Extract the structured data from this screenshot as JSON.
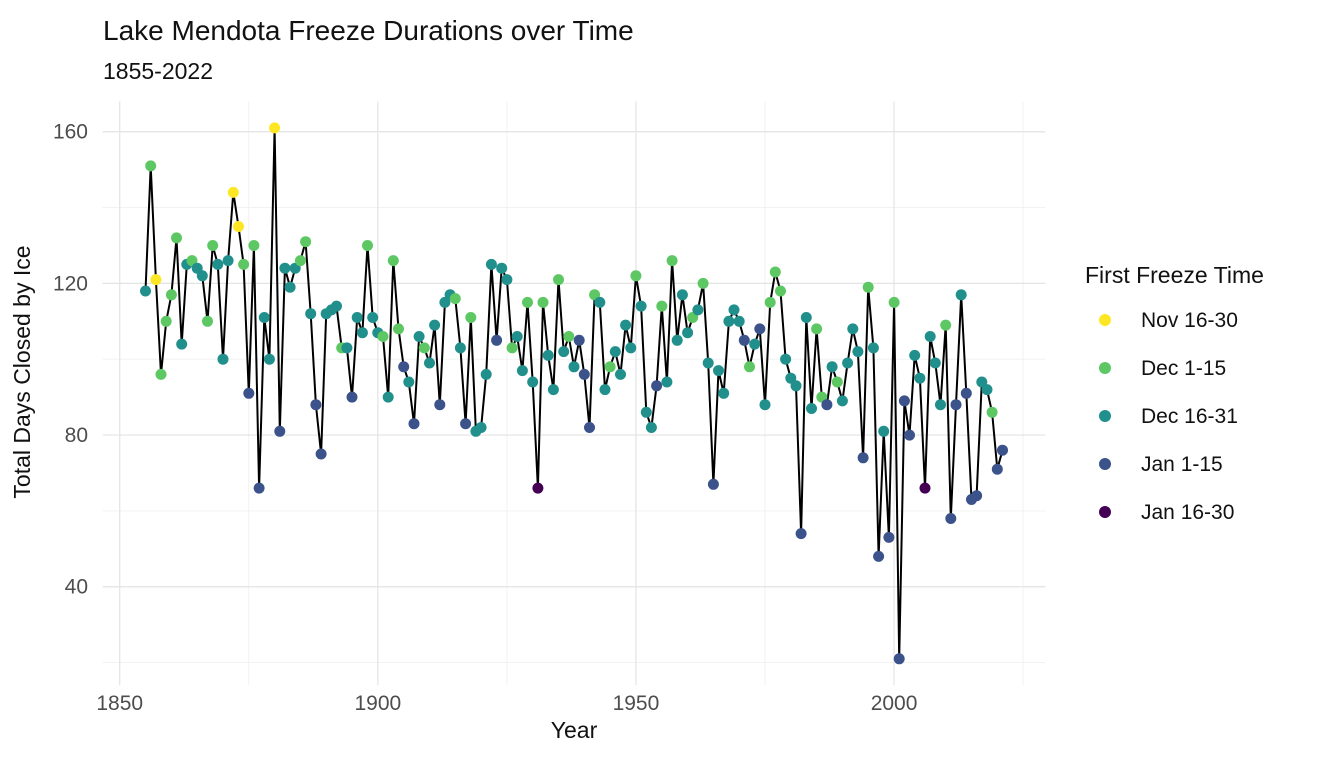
{
  "header": {
    "title": "Lake Mendota Freeze Durations over Time",
    "subtitle": "1855-2022"
  },
  "legend": {
    "title": "First Freeze Time",
    "items": [
      {
        "label": "Nov 16-30",
        "color": "#FDE725"
      },
      {
        "label": "Dec 1-15",
        "color": "#5DC863"
      },
      {
        "label": "Dec 16-31",
        "color": "#21908C"
      },
      {
        "label": "Jan 1-15",
        "color": "#3B528B"
      },
      {
        "label": "Jan 16-30",
        "color": "#440154"
      }
    ]
  },
  "chart_data": {
    "type": "line",
    "title": "Lake Mendota Freeze Durations over Time",
    "subtitle": "1855-2022",
    "xlabel": "Year",
    "ylabel": "Total Days Closed by Ice",
    "xlim": [
      1846.7,
      2029.3
    ],
    "ylim": [
      14,
      168
    ],
    "x_major_ticks": [
      1850,
      1900,
      1950,
      2000
    ],
    "x_minor_gridlines": [
      1875,
      1925,
      1975,
      2025
    ],
    "y_major_ticks": [
      40,
      80,
      120,
      160
    ],
    "y_minor_gridlines": [
      20,
      60,
      100,
      140
    ],
    "grid": "on",
    "legend_position": "right",
    "line_color": "#000000",
    "point_legend_key": "freeze_bucket_index_into_legend_items",
    "points": [
      [
        1855,
        118,
        2
      ],
      [
        1856,
        151,
        1
      ],
      [
        1857,
        121,
        0
      ],
      [
        1858,
        96,
        1
      ],
      [
        1859,
        110,
        1
      ],
      [
        1860,
        117,
        1
      ],
      [
        1861,
        132,
        1
      ],
      [
        1862,
        104,
        2
      ],
      [
        1863,
        125,
        2
      ],
      [
        1864,
        126,
        1
      ],
      [
        1865,
        124,
        2
      ],
      [
        1866,
        122,
        2
      ],
      [
        1867,
        110,
        1
      ],
      [
        1868,
        130,
        1
      ],
      [
        1869,
        125,
        2
      ],
      [
        1870,
        100,
        2
      ],
      [
        1871,
        126,
        2
      ],
      [
        1872,
        144,
        0
      ],
      [
        1873,
        135,
        0
      ],
      [
        1874,
        125,
        1
      ],
      [
        1875,
        91,
        3
      ],
      [
        1876,
        130,
        1
      ],
      [
        1877,
        66,
        3
      ],
      [
        1878,
        111,
        2
      ],
      [
        1879,
        100,
        2
      ],
      [
        1880,
        161,
        0
      ],
      [
        1881,
        81,
        3
      ],
      [
        1882,
        124,
        2
      ],
      [
        1883,
        119,
        2
      ],
      [
        1884,
        124,
        2
      ],
      [
        1885,
        126,
        1
      ],
      [
        1886,
        131,
        1
      ],
      [
        1887,
        112,
        2
      ],
      [
        1888,
        88,
        3
      ],
      [
        1889,
        75,
        3
      ],
      [
        1890,
        112,
        2
      ],
      [
        1891,
        113,
        2
      ],
      [
        1892,
        114,
        2
      ],
      [
        1893,
        103,
        1
      ],
      [
        1894,
        103,
        2
      ],
      [
        1895,
        90,
        3
      ],
      [
        1896,
        111,
        2
      ],
      [
        1897,
        107,
        2
      ],
      [
        1898,
        130,
        1
      ],
      [
        1899,
        111,
        2
      ],
      [
        1900,
        107,
        2
      ],
      [
        1901,
        106,
        1
      ],
      [
        1902,
        90,
        2
      ],
      [
        1903,
        126,
        1
      ],
      [
        1904,
        108,
        1
      ],
      [
        1905,
        98,
        3
      ],
      [
        1906,
        94,
        2
      ],
      [
        1907,
        83,
        3
      ],
      [
        1908,
        106,
        2
      ],
      [
        1909,
        103,
        1
      ],
      [
        1910,
        99,
        2
      ],
      [
        1911,
        109,
        2
      ],
      [
        1912,
        88,
        3
      ],
      [
        1913,
        115,
        2
      ],
      [
        1914,
        117,
        2
      ],
      [
        1915,
        116,
        1
      ],
      [
        1916,
        103,
        2
      ],
      [
        1917,
        83,
        3
      ],
      [
        1918,
        111,
        1
      ],
      [
        1919,
        81,
        2
      ],
      [
        1920,
        82,
        2
      ],
      [
        1921,
        96,
        2
      ],
      [
        1922,
        125,
        2
      ],
      [
        1923,
        105,
        3
      ],
      [
        1924,
        124,
        2
      ],
      [
        1925,
        121,
        2
      ],
      [
        1926,
        103,
        1
      ],
      [
        1927,
        106,
        2
      ],
      [
        1928,
        97,
        2
      ],
      [
        1929,
        115,
        1
      ],
      [
        1930,
        94,
        2
      ],
      [
        1931,
        66,
        4
      ],
      [
        1932,
        115,
        1
      ],
      [
        1933,
        101,
        2
      ],
      [
        1934,
        92,
        2
      ],
      [
        1935,
        121,
        1
      ],
      [
        1936,
        102,
        2
      ],
      [
        1937,
        106,
        1
      ],
      [
        1938,
        98,
        2
      ],
      [
        1939,
        105,
        3
      ],
      [
        1940,
        96,
        3
      ],
      [
        1941,
        82,
        3
      ],
      [
        1942,
        117,
        1
      ],
      [
        1943,
        115,
        2
      ],
      [
        1944,
        92,
        2
      ],
      [
        1945,
        98,
        1
      ],
      [
        1946,
        102,
        2
      ],
      [
        1947,
        96,
        2
      ],
      [
        1948,
        109,
        2
      ],
      [
        1949,
        103,
        2
      ],
      [
        1950,
        122,
        1
      ],
      [
        1951,
        114,
        2
      ],
      [
        1952,
        86,
        2
      ],
      [
        1953,
        82,
        2
      ],
      [
        1954,
        93,
        3
      ],
      [
        1955,
        114,
        1
      ],
      [
        1956,
        94,
        2
      ],
      [
        1957,
        126,
        1
      ],
      [
        1958,
        105,
        2
      ],
      [
        1959,
        117,
        2
      ],
      [
        1960,
        107,
        2
      ],
      [
        1961,
        111,
        1
      ],
      [
        1962,
        113,
        2
      ],
      [
        1963,
        120,
        1
      ],
      [
        1964,
        99,
        2
      ],
      [
        1965,
        67,
        3
      ],
      [
        1966,
        97,
        2
      ],
      [
        1967,
        91,
        2
      ],
      [
        1968,
        110,
        2
      ],
      [
        1969,
        113,
        2
      ],
      [
        1970,
        110,
        2
      ],
      [
        1971,
        105,
        3
      ],
      [
        1972,
        98,
        1
      ],
      [
        1973,
        104,
        2
      ],
      [
        1974,
        108,
        3
      ],
      [
        1975,
        88,
        2
      ],
      [
        1976,
        115,
        1
      ],
      [
        1977,
        123,
        1
      ],
      [
        1978,
        118,
        1
      ],
      [
        1979,
        100,
        2
      ],
      [
        1980,
        95,
        2
      ],
      [
        1981,
        93,
        2
      ],
      [
        1982,
        54,
        3
      ],
      [
        1983,
        111,
        2
      ],
      [
        1984,
        87,
        2
      ],
      [
        1985,
        108,
        1
      ],
      [
        1986,
        90,
        1
      ],
      [
        1987,
        88,
        3
      ],
      [
        1988,
        98,
        2
      ],
      [
        1989,
        94,
        1
      ],
      [
        1990,
        89,
        2
      ],
      [
        1991,
        99,
        2
      ],
      [
        1992,
        108,
        2
      ],
      [
        1993,
        102,
        2
      ],
      [
        1994,
        74,
        3
      ],
      [
        1995,
        119,
        1
      ],
      [
        1996,
        103,
        2
      ],
      [
        1997,
        48,
        3
      ],
      [
        1998,
        81,
        2
      ],
      [
        1999,
        53,
        3
      ],
      [
        2000,
        115,
        1
      ],
      [
        2001,
        21,
        3
      ],
      [
        2002,
        89,
        3
      ],
      [
        2003,
        80,
        3
      ],
      [
        2004,
        101,
        2
      ],
      [
        2005,
        95,
        2
      ],
      [
        2006,
        66,
        4
      ],
      [
        2007,
        106,
        2
      ],
      [
        2008,
        99,
        2
      ],
      [
        2009,
        88,
        2
      ],
      [
        2010,
        109,
        1
      ],
      [
        2011,
        58,
        3
      ],
      [
        2012,
        88,
        3
      ],
      [
        2013,
        117,
        2
      ],
      [
        2014,
        91,
        3
      ],
      [
        2015,
        63,
        3
      ],
      [
        2016,
        64,
        3
      ],
      [
        2017,
        94,
        2
      ],
      [
        2018,
        92,
        2
      ],
      [
        2019,
        86,
        1
      ],
      [
        2020,
        71,
        3
      ],
      [
        2021,
        76,
        3
      ]
    ]
  },
  "style": {
    "background": "#ffffff",
    "major_grid_color": "#e3e3e3",
    "minor_grid_color": "#f0f0f0",
    "tick_label_color": "#4d4d4d",
    "text_color": "#111111"
  }
}
